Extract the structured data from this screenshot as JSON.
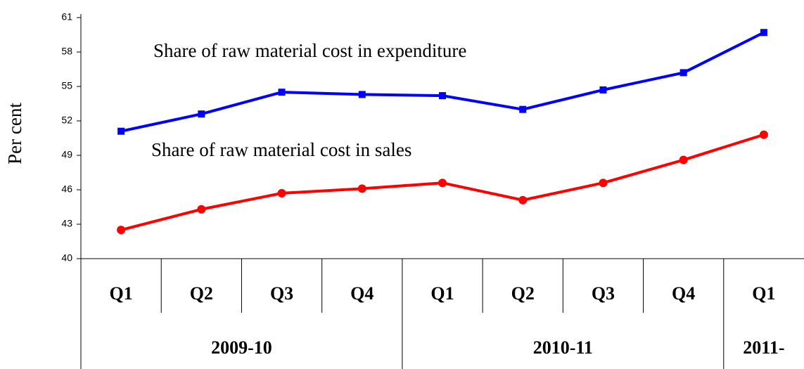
{
  "chart_data": {
    "type": "line",
    "y_axis_label": "Per cent",
    "annotations": [
      "Share of raw material cost in expenditure",
      "Share of raw material cost in sales"
    ],
    "categories": [
      "Q1",
      "Q2",
      "Q3",
      "Q4",
      "Q1",
      "Q2",
      "Q3",
      "Q4",
      "Q1"
    ],
    "category_groups": [
      "2009-10",
      "2009-10",
      "2009-10",
      "2009-10",
      "2010-11",
      "2010-11",
      "2010-11",
      "2010-11",
      "2011-"
    ],
    "series": [
      {
        "color": "#0000ff",
        "marker": "square",
        "values": [
          51.1,
          52.6,
          54.5,
          54.3,
          54.2,
          53.0,
          54.7,
          56.2,
          59.7
        ]
      },
      {
        "color": "#ff0000",
        "marker": "circle",
        "values": [
          42.5,
          44.3,
          45.7,
          46.1,
          46.6,
          45.1,
          46.6,
          48.6,
          50.8
        ]
      }
    ],
    "ylim": [
      40,
      61
    ],
    "yticks": [
      40,
      43,
      46,
      49,
      52,
      55,
      58,
      61
    ],
    "grid": false
  }
}
